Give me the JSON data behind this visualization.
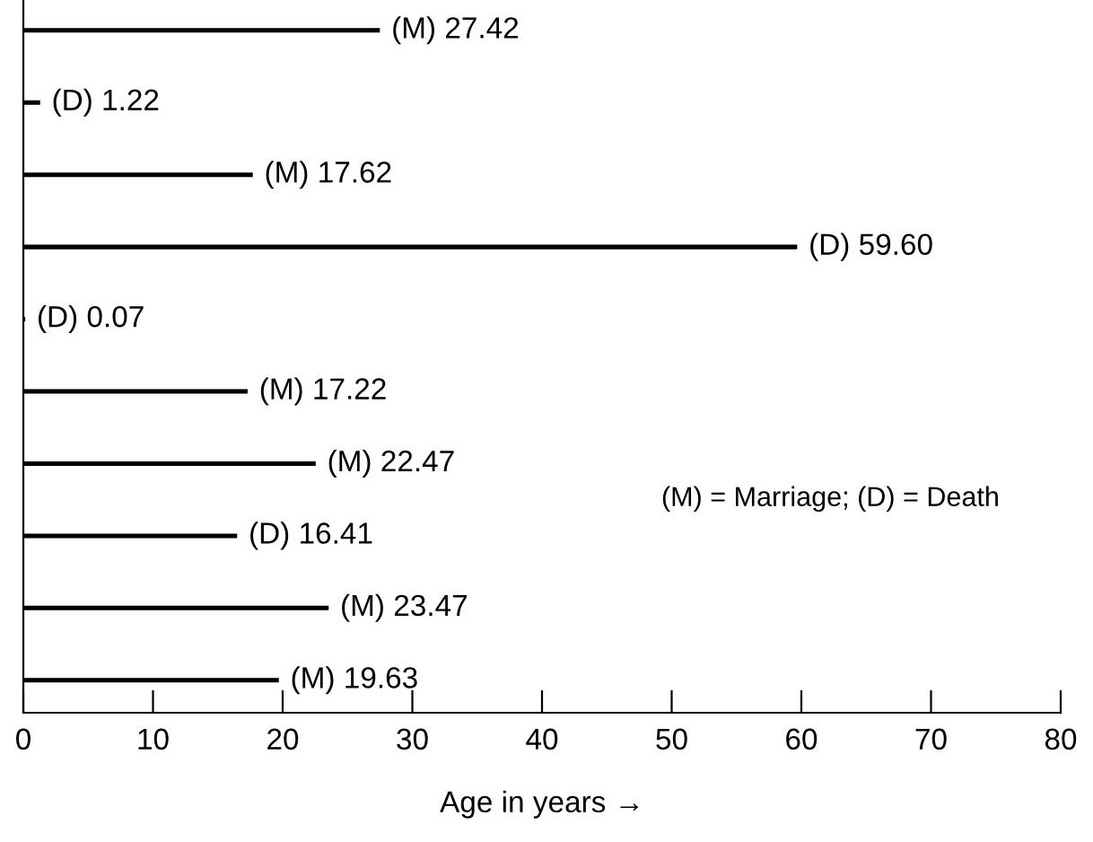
{
  "chart_data": {
    "type": "bar",
    "orientation": "horizontal",
    "xlabel": "Age in years →",
    "categories": [
      null,
      null,
      null,
      null,
      null,
      null,
      null,
      null,
      null,
      null
    ],
    "values": [
      27.42,
      1.22,
      17.62,
      59.6,
      0.07,
      17.22,
      22.47,
      16.41,
      23.47,
      19.63
    ],
    "value_labels": [
      "(M) 27.42",
      "(D) 1.22",
      "(M) 17.62",
      "(D) 59.60",
      "(D) 0.07",
      "(M) 17.22",
      "(M) 22.47",
      "(D) 16.41",
      "(M) 23.47",
      "(M) 19.63"
    ],
    "color": "#000000",
    "xlim": [
      0,
      80
    ],
    "xticks": [
      0,
      10,
      20,
      30,
      40,
      50,
      60,
      70,
      80
    ],
    "tick_labels": "x",
    "grid": false,
    "legend": false,
    "annotations": [
      "(M) = Marriage; (D) = Death"
    ]
  }
}
